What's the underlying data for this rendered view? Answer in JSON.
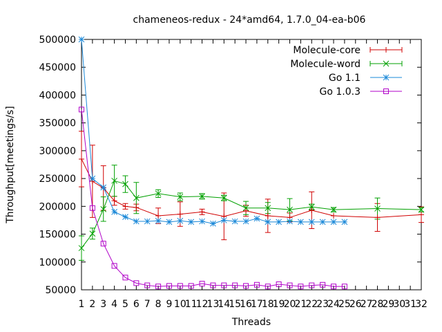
{
  "chart_data": {
    "type": "line",
    "title": "chameneos-redux - 24*amd64, 1.7.0_04-ea-b06",
    "xlabel": "Threads",
    "ylabel": "Throughput[meetings/s]",
    "xlim": [
      1,
      32
    ],
    "ylim": [
      50000,
      500000
    ],
    "x_ticks": [
      1,
      2,
      3,
      4,
      5,
      6,
      7,
      8,
      9,
      10,
      11,
      12,
      13,
      14,
      15,
      16,
      17,
      18,
      19,
      20,
      21,
      22,
      23,
      24,
      25,
      26,
      27,
      28,
      29,
      30,
      31,
      32
    ],
    "y_ticks": [
      50000,
      100000,
      150000,
      200000,
      250000,
      300000,
      350000,
      400000,
      450000,
      500000
    ],
    "legend_position": "top-right",
    "grid": false,
    "series": [
      {
        "name": "Molecule-core",
        "color": "#d00000",
        "marker": "plus",
        "x": [
          1,
          2,
          3,
          4,
          5,
          6,
          8,
          10,
          12,
          14,
          16,
          18,
          20,
          22,
          24,
          28,
          32
        ],
        "values": [
          285000,
          245000,
          233000,
          210000,
          200000,
          198000,
          183000,
          186000,
          190000,
          182000,
          192000,
          183000,
          180000,
          193000,
          183000,
          180000,
          185000
        ],
        "errors": [
          50000,
          65000,
          40000,
          8000,
          5000,
          6000,
          14000,
          22000,
          5000,
          42000,
          10000,
          30000,
          8000,
          33000,
          0,
          25000,
          14000
        ]
      },
      {
        "name": "Molecule-word",
        "color": "#00a000",
        "marker": "x",
        "x": [
          1,
          2,
          3,
          4,
          5,
          6,
          8,
          10,
          12,
          14,
          16,
          18,
          20,
          22,
          24,
          28,
          32
        ],
        "values": [
          125000,
          151000,
          195000,
          246000,
          240000,
          215000,
          223000,
          217000,
          218000,
          215000,
          197000,
          197000,
          194000,
          199000,
          194000,
          196000,
          194000
        ],
        "errors": [
          22000,
          10000,
          22000,
          28000,
          15000,
          28000,
          7000,
          7000,
          5000,
          5000,
          12000,
          10000,
          20000,
          5000,
          4000,
          19000,
          4000
        ]
      },
      {
        "name": "Go 1.1",
        "color": "#1a88d8",
        "marker": "star",
        "x": [
          1,
          2,
          3,
          4,
          5,
          6,
          7,
          8,
          9,
          10,
          11,
          12,
          13,
          14,
          15,
          16,
          17,
          18,
          19,
          20,
          21,
          22,
          23,
          24,
          25
        ],
        "values": [
          500000,
          250000,
          234000,
          190000,
          181000,
          173000,
          173000,
          174000,
          172000,
          174000,
          172000,
          173000,
          169000,
          175000,
          173000,
          173000,
          178000,
          172000,
          172000,
          173000,
          172000,
          172000,
          172000,
          172000,
          172000
        ],
        "errors": []
      },
      {
        "name": "Go 1.0.3",
        "color": "#b000c8",
        "marker": "square",
        "x": [
          1,
          2,
          3,
          4,
          5,
          6,
          7,
          8,
          9,
          10,
          11,
          12,
          13,
          14,
          15,
          16,
          17,
          18,
          19,
          20,
          21,
          22,
          23,
          24,
          25
        ],
        "values": [
          374000,
          197000,
          133000,
          93000,
          72000,
          62000,
          58000,
          56000,
          57000,
          57000,
          57000,
          61000,
          58000,
          58000,
          58000,
          57000,
          59000,
          56000,
          60000,
          58000,
          56000,
          58000,
          59000,
          56000,
          56000
        ],
        "errors": []
      }
    ]
  }
}
